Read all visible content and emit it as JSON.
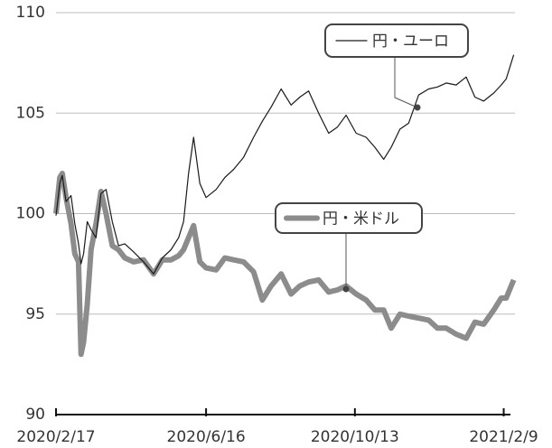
{
  "chart_data": {
    "type": "line",
    "x": [
      "2020/2/17",
      "2020/2/20",
      "2020/2/22",
      "2020/2/25",
      "2020/2/29",
      "2020/3/3",
      "2020/3/6",
      "2020/3/8",
      "2020/3/10",
      "2020/3/13",
      "2020/3/16",
      "2020/3/20",
      "2020/3/24",
      "2020/3/28",
      "2020/4/2",
      "2020/4/7",
      "2020/4/12",
      "2020/4/19",
      "2020/4/27",
      "2020/5/5",
      "2020/5/12",
      "2020/5/19",
      "2020/5/25",
      "2020/5/29",
      "2020/6/2",
      "2020/6/6",
      "2020/6/11",
      "2020/6/16",
      "2020/6/24",
      "2020/7/1",
      "2020/7/8",
      "2020/7/16",
      "2020/7/24",
      "2020/7/31",
      "2020/8/7",
      "2020/8/15",
      "2020/8/23",
      "2020/8/30",
      "2020/9/6",
      "2020/9/14",
      "2020/9/22",
      "2020/9/29",
      "2020/10/6",
      "2020/10/14",
      "2020/10/22",
      "2020/10/29",
      "2020/11/5",
      "2020/11/11",
      "2020/11/18",
      "2020/11/25",
      "2020/12/3",
      "2020/12/11",
      "2020/12/18",
      "2020/12/25",
      "2021/1/2",
      "2021/1/10",
      "2021/1/17",
      "2021/1/24",
      "2021/2/1",
      "2021/2/7",
      "2021/2/11",
      "2021/2/17"
    ],
    "series": [
      {
        "name": "円・ユーロ",
        "color": "#1a1a1a",
        "width": 1.2,
        "values": [
          99.9,
          101.5,
          101.9,
          100.6,
          100.9,
          99.5,
          98.5,
          97.5,
          98,
          99.6,
          99.2,
          98.8,
          101,
          101.2,
          99.6,
          98.4,
          98.5,
          98.1,
          97.6,
          97,
          97.8,
          98.2,
          98.8,
          99.6,
          102,
          103.8,
          101.5,
          100.8,
          101.2,
          101.8,
          102.2,
          102.8,
          103.8,
          104.6,
          105.3,
          106.2,
          105.4,
          105.8,
          106.1,
          105,
          104,
          104.3,
          104.9,
          104,
          103.8,
          103.3,
          102.7,
          103.3,
          104.2,
          104.5,
          105.9,
          106.2,
          106.3,
          106.5,
          106.4,
          106.8,
          105.8,
          105.6,
          106,
          106.4,
          106.7,
          107.9
        ]
      },
      {
        "name": "円・米ドル",
        "color": "#8c8c8c",
        "width": 6,
        "values": [
          100,
          101.8,
          102,
          100.8,
          99.5,
          98,
          97.6,
          93,
          93.6,
          95.5,
          98.2,
          99.5,
          101.1,
          100,
          98.4,
          98.2,
          97.8,
          97.6,
          97.7,
          97,
          97.7,
          97.7,
          97.9,
          98.2,
          98.8,
          99.4,
          97.6,
          97.3,
          97.2,
          97.8,
          97.7,
          97.6,
          97.1,
          95.7,
          96.4,
          97,
          96,
          96.4,
          96.6,
          96.7,
          96.1,
          96.2,
          96.4,
          96,
          95.7,
          95.2,
          95.2,
          94.3,
          95,
          94.9,
          94.8,
          94.7,
          94.3,
          94.3,
          94,
          93.8,
          94.6,
          94.5,
          95.2,
          95.8,
          95.8,
          96.7
        ]
      }
    ],
    "xlim": [
      "2020/2/17",
      "2021/2/18"
    ],
    "xticks": [
      "2020/2/17",
      "2020/6/16",
      "2020/10/13",
      "2021/2/9"
    ],
    "ylim": [
      90,
      110
    ],
    "yticks": [
      90,
      95,
      100,
      105,
      110
    ],
    "grid": true
  }
}
